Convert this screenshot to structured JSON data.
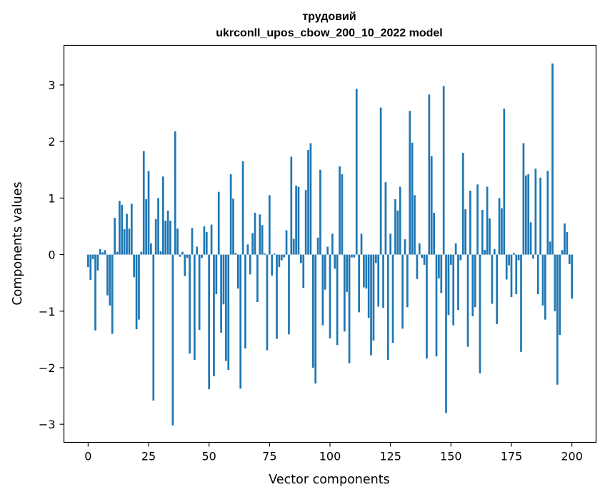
{
  "chart_data": {
    "type": "bar",
    "title_line1": "трудовий",
    "title_line2": "ukrconll_upos_cbow_200_10_2022 model",
    "xlabel": "Vector components",
    "ylabel": "Components values",
    "xlim": [
      -10,
      210
    ],
    "ylim": [
      -3.32,
      3.7
    ],
    "x_ticks": [
      0,
      25,
      50,
      75,
      100,
      125,
      150,
      175,
      200
    ],
    "x_tick_labels": [
      "0",
      "25",
      "50",
      "75",
      "100",
      "125",
      "150",
      "175",
      "200"
    ],
    "y_ticks": [
      -3,
      -2,
      -1,
      0,
      1,
      2,
      3
    ],
    "y_tick_labels": [
      "−3",
      "−2",
      "−1",
      "0",
      "1",
      "2",
      "3"
    ],
    "bar_color": "#1f77b4",
    "values": [
      -0.22,
      -0.45,
      -0.08,
      -1.34,
      -0.28,
      0.1,
      0.04,
      0.08,
      -0.72,
      -0.9,
      -1.4,
      0.65,
      0.05,
      0.95,
      0.88,
      0.45,
      0.72,
      0.46,
      0.9,
      -0.4,
      -1.32,
      -1.15,
      0.05,
      1.83,
      0.98,
      1.48,
      0.2,
      -2.58,
      0.63,
      1.0,
      0.06,
      1.38,
      0.6,
      0.78,
      0.6,
      -3.02,
      2.18,
      0.46,
      -0.04,
      0.05,
      -0.38,
      -0.06,
      -1.75,
      0.47,
      -1.86,
      0.14,
      -1.33,
      -0.06,
      0.5,
      0.4,
      -2.38,
      0.53,
      -2.15,
      -0.7,
      1.11,
      -1.38,
      -0.88,
      -1.88,
      -2.04,
      1.42,
      0.99,
      0.03,
      -0.6,
      -2.37,
      1.65,
      -1.66,
      0.18,
      -0.35,
      0.38,
      0.74,
      -0.84,
      0.71,
      0.52,
      0.02,
      -1.69,
      1.05,
      -0.37,
      0.02,
      -1.49,
      -0.22,
      -0.1,
      -0.05,
      0.43,
      -1.41,
      1.73,
      0.28,
      1.22,
      1.2,
      -0.15,
      -0.59,
      1.14,
      1.85,
      1.97,
      -2.0,
      -2.28,
      0.3,
      1.5,
      -1.25,
      -0.62,
      0.14,
      -1.48,
      0.37,
      -0.25,
      -1.6,
      1.56,
      1.42,
      -1.36,
      -0.66,
      -1.92,
      -0.05,
      -0.05,
      2.93,
      -1.02,
      0.37,
      -0.58,
      -0.6,
      -1.12,
      -1.78,
      -1.52,
      -0.15,
      -0.92,
      2.6,
      -0.94,
      1.28,
      -1.86,
      0.37,
      -1.56,
      0.98,
      0.78,
      1.2,
      -1.31,
      0.27,
      -0.93,
      2.54,
      1.98,
      1.05,
      -0.43,
      0.2,
      -0.06,
      -0.18,
      -1.84,
      2.83,
      1.74,
      0.74,
      -1.8,
      -0.42,
      -0.68,
      2.98,
      -2.8,
      -1.07,
      -0.18,
      -1.25,
      0.2,
      -0.98,
      -0.1,
      1.8,
      0.8,
      -1.63,
      1.13,
      -1.09,
      -0.93,
      1.24,
      -2.1,
      0.79,
      0.08,
      1.2,
      0.64,
      -0.87,
      0.1,
      -1.23,
      1.0,
      0.82,
      2.58,
      -0.44,
      -0.19,
      -0.75,
      0.03,
      -0.7,
      -0.1,
      -1.72,
      1.97,
      1.4,
      1.42,
      0.57,
      -0.07,
      1.52,
      -0.7,
      1.36,
      -0.9,
      -1.15,
      1.48,
      0.23,
      3.38,
      -1.0,
      -2.3,
      -1.42,
      0.08,
      0.55,
      0.4,
      -0.17,
      -0.78
    ]
  }
}
